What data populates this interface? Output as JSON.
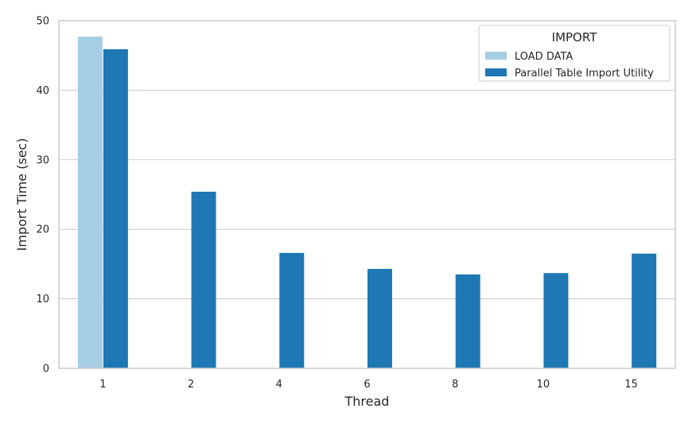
{
  "chart_data": {
    "type": "bar",
    "xlabel": "Thread",
    "ylabel": "Import Time (sec)",
    "categories": [
      "1",
      "2",
      "4",
      "6",
      "8",
      "10",
      "15"
    ],
    "ylim": [
      0,
      50
    ],
    "yticks": [
      0,
      10,
      20,
      30,
      40,
      50
    ],
    "grid": true,
    "legend": {
      "title": "IMPORT",
      "placement": "top-right"
    },
    "series": [
      {
        "name": "LOAD DATA",
        "color": "#a6cee3",
        "values": [
          47.7,
          null,
          null,
          null,
          null,
          null,
          null
        ]
      },
      {
        "name": "Parallel Table Import Utility",
        "color": "#1f78b4",
        "values": [
          45.9,
          25.4,
          16.6,
          14.3,
          13.5,
          13.7,
          16.5
        ]
      }
    ]
  }
}
